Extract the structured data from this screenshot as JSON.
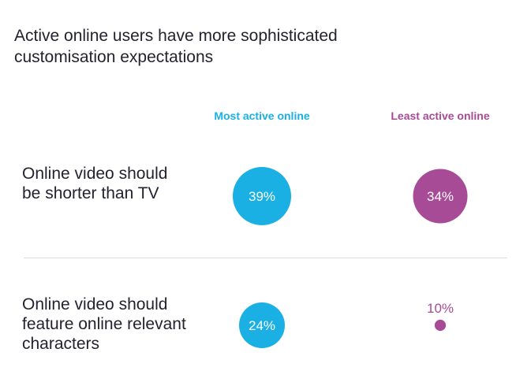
{
  "title": "Active online users have more sophisticated customisation expectations",
  "colors": {
    "most": "#1ab0e3",
    "least": "#a84b97"
  },
  "chart_data": {
    "type": "bubble",
    "title": "Active online users have more sophisticated customisation expectations",
    "series": [
      {
        "name": "Most active online",
        "values": [
          39,
          24
        ]
      },
      {
        "name": "Least active online",
        "values": [
          34,
          10
        ]
      }
    ],
    "categories": [
      "Online video should be shorter than TV",
      "Online video should feature online relevant characters"
    ],
    "value_labels": [
      [
        "39%",
        "24%"
      ],
      [
        "34%",
        "10%"
      ]
    ],
    "unit": "%"
  }
}
